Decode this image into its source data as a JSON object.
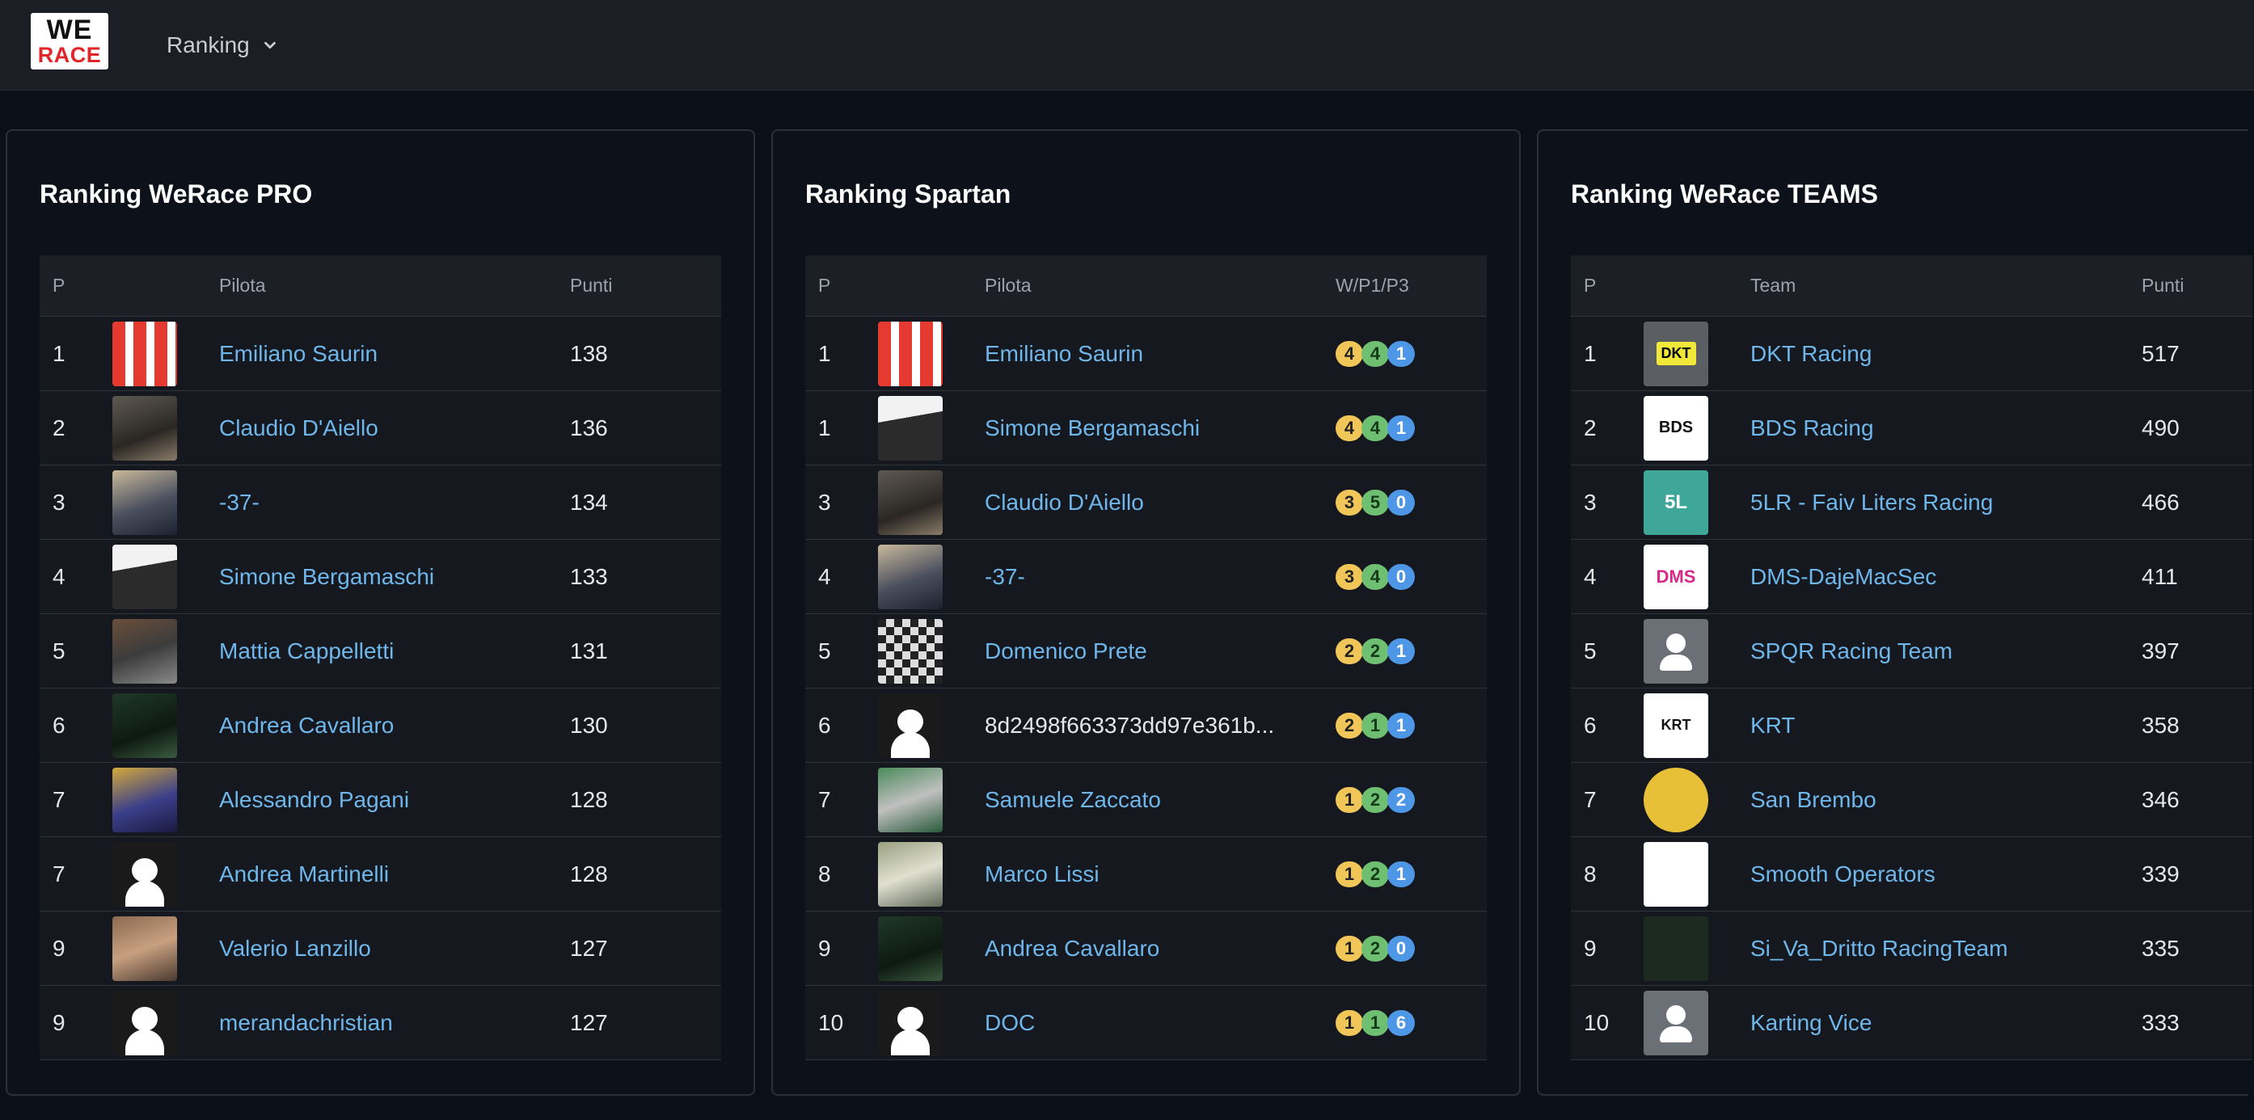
{
  "nav": {
    "logo_top": "WE",
    "logo_bottom": "RACE",
    "menu_label": "Ranking"
  },
  "colors": {
    "background": "#0b0f18",
    "link": "#6fb6ea",
    "badge_w": "#f0c659",
    "badge_p1": "#6fbf73",
    "badge_p3": "#4e97e6"
  },
  "pro": {
    "title": "Ranking WeRace PRO",
    "headers": {
      "pos": "P",
      "name": "Pilota",
      "pts": "Punti"
    },
    "rows": [
      {
        "pos": "1",
        "name": "Emiliano Saurin",
        "pts": "138"
      },
      {
        "pos": "2",
        "name": "Claudio D'Aiello",
        "pts": "136"
      },
      {
        "pos": "3",
        "name": "-37-",
        "pts": "134"
      },
      {
        "pos": "4",
        "name": "Simone Bergamaschi",
        "pts": "133"
      },
      {
        "pos": "5",
        "name": "Mattia Cappelletti",
        "pts": "131"
      },
      {
        "pos": "6",
        "name": "Andrea Cavallaro",
        "pts": "130"
      },
      {
        "pos": "7",
        "name": "Alessandro Pagani",
        "pts": "128"
      },
      {
        "pos": "7",
        "name": "Andrea Martinelli",
        "pts": "128"
      },
      {
        "pos": "9",
        "name": "Valerio Lanzillo",
        "pts": "127"
      },
      {
        "pos": "9",
        "name": "merandachristian",
        "pts": "127"
      }
    ]
  },
  "spartan": {
    "title": "Ranking Spartan",
    "headers": {
      "pos": "P",
      "name": "Pilota",
      "pts": "W/P1/P3"
    },
    "rows": [
      {
        "pos": "1",
        "name": "Emiliano Saurin",
        "w": "4",
        "p1": "4",
        "p3": "1"
      },
      {
        "pos": "1",
        "name": "Simone Bergamaschi",
        "w": "4",
        "p1": "4",
        "p3": "1"
      },
      {
        "pos": "3",
        "name": "Claudio D'Aiello",
        "w": "3",
        "p1": "5",
        "p3": "0"
      },
      {
        "pos": "4",
        "name": "-37-",
        "w": "3",
        "p1": "4",
        "p3": "0"
      },
      {
        "pos": "5",
        "name": "Domenico Prete",
        "w": "2",
        "p1": "2",
        "p3": "1"
      },
      {
        "pos": "6",
        "name": "8d2498f663373dd97e361b...",
        "w": "2",
        "p1": "1",
        "p3": "1"
      },
      {
        "pos": "7",
        "name": "Samuele Zaccato",
        "w": "1",
        "p1": "2",
        "p3": "2"
      },
      {
        "pos": "8",
        "name": "Marco Lissi",
        "w": "1",
        "p1": "2",
        "p3": "1"
      },
      {
        "pos": "9",
        "name": "Andrea Cavallaro",
        "w": "1",
        "p1": "2",
        "p3": "0"
      },
      {
        "pos": "10",
        "name": "DOC",
        "w": "1",
        "p1": "1",
        "p3": "6"
      }
    ]
  },
  "teams": {
    "title": "Ranking WeRace TEAMS",
    "headers": {
      "pos": "P",
      "name": "Team",
      "pts": "Punti"
    },
    "rows": [
      {
        "pos": "1",
        "name": "DKT Racing",
        "pts": "517",
        "logo_text": "DKT"
      },
      {
        "pos": "2",
        "name": "BDS Racing",
        "pts": "490",
        "logo_text": "BDS"
      },
      {
        "pos": "3",
        "name": "5LR - Faiv Liters Racing",
        "pts": "466",
        "logo_text": "5L"
      },
      {
        "pos": "4",
        "name": "DMS-DajeMacSec",
        "pts": "411",
        "logo_text": "DMS"
      },
      {
        "pos": "5",
        "name": "SPQR Racing Team",
        "pts": "397"
      },
      {
        "pos": "6",
        "name": "KRT",
        "pts": "358",
        "logo_text": "KRT"
      },
      {
        "pos": "7",
        "name": "San Brembo",
        "pts": "346"
      },
      {
        "pos": "8",
        "name": "Smooth Operators",
        "pts": "339"
      },
      {
        "pos": "9",
        "name": "Si_Va_Dritto RacingTeam",
        "pts": "335"
      },
      {
        "pos": "10",
        "name": "Karting Vice",
        "pts": "333"
      }
    ]
  }
}
